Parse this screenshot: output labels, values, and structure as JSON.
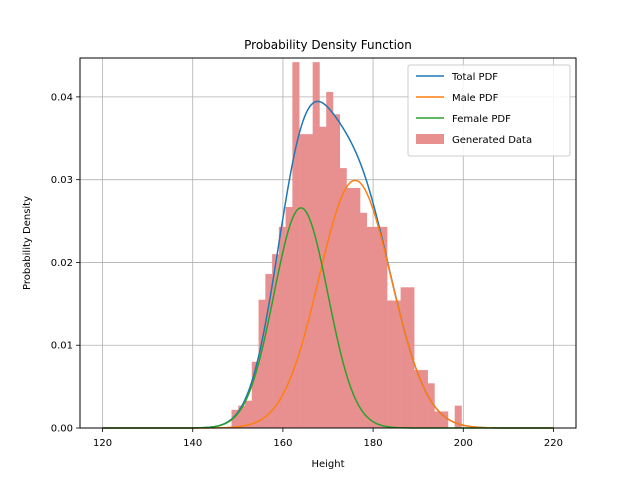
{
  "chart_data": {
    "type": "histogram+line",
    "title": "Probability Density Function",
    "xlabel": "Height",
    "ylabel": "Probability Density",
    "xlim": [
      115,
      225
    ],
    "ylim": [
      0,
      0.0447
    ],
    "xticks": [
      120,
      140,
      160,
      180,
      200,
      220
    ],
    "yticks": [
      0.0,
      0.01,
      0.02,
      0.03,
      0.04
    ],
    "ytick_labels": [
      "0.00",
      "0.01",
      "0.02",
      "0.03",
      "0.04"
    ],
    "grid": true,
    "legend_position": "top-right",
    "histogram": {
      "name": "Generated Data",
      "color": "#e89090",
      "bin_edges": [
        148.6,
        150.1,
        151.6,
        153.1,
        154.6,
        156.1,
        157.6,
        159.1,
        160.6,
        162.1,
        163.6,
        165.1,
        166.6,
        168.1,
        169.6,
        171.1,
        172.6,
        174.1,
        175.6,
        177.1,
        178.6,
        180.1,
        181.6,
        183.1,
        184.6,
        186.1,
        187.6,
        189.1,
        190.6,
        192.1,
        193.6,
        195.1,
        196.6,
        198.1,
        199.6
      ],
      "densities": [
        0.0022,
        0.0027,
        0.0033,
        0.008,
        0.0155,
        0.0186,
        0.021,
        0.0243,
        0.0267,
        0.0442,
        0.0355,
        0.0355,
        0.0442,
        0.0364,
        0.0406,
        0.0379,
        0.0314,
        0.029,
        0.029,
        0.026,
        0.0243,
        0.0243,
        0.0243,
        0.0154,
        0.0154,
        0.017,
        0.017,
        0.007,
        0.007,
        0.0054,
        0.002,
        0.002,
        0.0,
        0.0027
      ]
    },
    "series": [
      {
        "name": "Total PDF",
        "color": "#1f77b4",
        "components": [
          {
            "weight": 0.4,
            "mean": 164,
            "sd": 6
          },
          {
            "weight": 0.6,
            "mean": 176,
            "sd": 8
          }
        ]
      },
      {
        "name": "Male PDF",
        "color": "#ff7f0e",
        "components": [
          {
            "weight": 0.6,
            "mean": 176,
            "sd": 8
          }
        ]
      },
      {
        "name": "Female PDF",
        "color": "#2ca02c",
        "components": [
          {
            "weight": 0.4,
            "mean": 164,
            "sd": 6
          }
        ]
      }
    ],
    "curve_range": [
      120,
      220
    ]
  }
}
